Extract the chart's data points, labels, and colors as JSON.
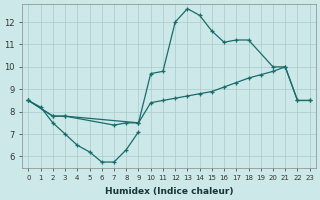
{
  "xlabel": "Humidex (Indice chaleur)",
  "bg_color": "#cce8e8",
  "grid_color": "#aacccc",
  "line_color": "#1a6b6b",
  "xlim": [
    -0.5,
    23.5
  ],
  "ylim": [
    5.5,
    12.8
  ],
  "xticks": [
    0,
    1,
    2,
    3,
    4,
    5,
    6,
    7,
    8,
    9,
    10,
    11,
    12,
    13,
    14,
    15,
    16,
    17,
    18,
    19,
    20,
    21,
    22,
    23
  ],
  "yticks": [
    6,
    7,
    8,
    9,
    10,
    11,
    12
  ],
  "line1_x": [
    0,
    1,
    2,
    3,
    4,
    5,
    6,
    7,
    8,
    9
  ],
  "line1_y": [
    8.5,
    8.2,
    7.5,
    7.0,
    6.5,
    6.2,
    5.75,
    5.75,
    6.3,
    7.1
  ],
  "line2_x": [
    0,
    2,
    3,
    9,
    10,
    11,
    12,
    13,
    14,
    15,
    16,
    17,
    18,
    20,
    21,
    22,
    23
  ],
  "line2_y": [
    8.5,
    7.8,
    7.8,
    7.5,
    9.7,
    9.8,
    12.0,
    12.6,
    12.3,
    11.6,
    11.1,
    11.2,
    11.2,
    10.0,
    10.0,
    8.5,
    8.5
  ],
  "line3_x": [
    0,
    2,
    3,
    7,
    8,
    9,
    10,
    11,
    12,
    13,
    14,
    15,
    16,
    17,
    18,
    19,
    20,
    21,
    22,
    23
  ],
  "line3_y": [
    8.5,
    7.8,
    7.8,
    7.4,
    7.5,
    7.5,
    8.4,
    8.5,
    8.6,
    8.7,
    8.8,
    8.9,
    9.1,
    9.3,
    9.5,
    9.65,
    9.8,
    10.0,
    8.5,
    8.5
  ]
}
